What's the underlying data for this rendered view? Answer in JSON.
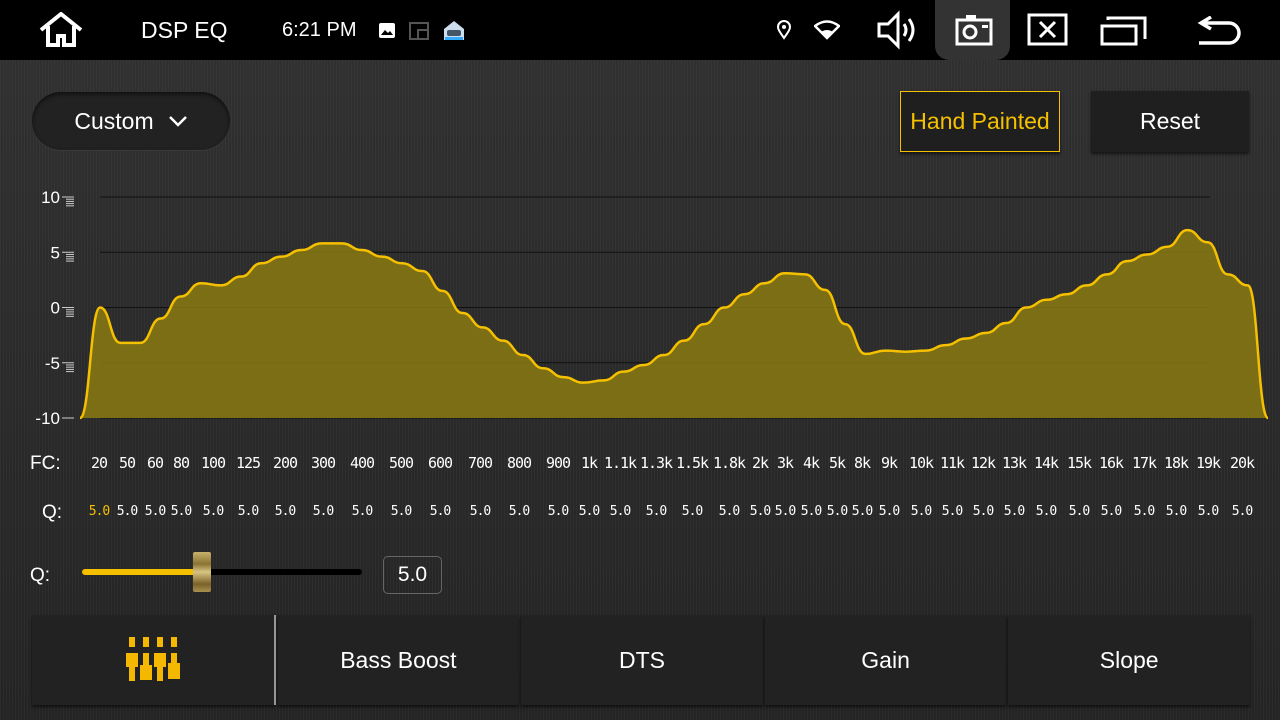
{
  "status_bar": {
    "app_title": "DSP EQ",
    "time": "6:21 PM",
    "icons": [
      "home-icon",
      "image-icon",
      "pip-icon",
      "car-icon",
      "location-icon",
      "wifi-icon",
      "volume-icon",
      "camera-icon",
      "close-window-icon",
      "recent-apps-icon",
      "back-icon"
    ]
  },
  "toolbar": {
    "preset": "Custom",
    "hand_painted": "Hand Painted",
    "reset": "Reset",
    "accent": "#f5c000"
  },
  "chart_data": {
    "type": "area",
    "ylim": [
      -10,
      10
    ],
    "yticks": [
      "10",
      "5",
      "0",
      "-5",
      "-10"
    ],
    "grid": true,
    "fill_color": "#8a7a10",
    "line_color": "#f5c000",
    "curve_gain_db": [
      -10,
      0,
      -3.2,
      -3.2,
      -1,
      1,
      2.2,
      2,
      2.8,
      4,
      4.6,
      5.2,
      5.8,
      5.8,
      5.2,
      4.6,
      4,
      3.3,
      1.5,
      -0.5,
      -1.8,
      -3,
      -4.3,
      -5.5,
      -6.3,
      -6.8,
      -6.6,
      -5.8,
      -5.2,
      -4.3,
      -3,
      -1.5,
      0,
      1.2,
      2.2,
      3.1,
      3,
      1.6,
      -1.5,
      -4.2,
      -3.9,
      -4,
      -3.9,
      -3.4,
      -2.8,
      -2.3,
      -1.4,
      0,
      0.7,
      1.2,
      2,
      3,
      4.2,
      4.8,
      5.5,
      7,
      5.9,
      3,
      2,
      -10
    ]
  },
  "bands": {
    "fc_label": "FC:",
    "q_label": "Q:",
    "fc": [
      "20",
      "50",
      "60",
      "80",
      "100",
      "125",
      "200",
      "300",
      "400",
      "500",
      "600",
      "700",
      "800",
      "900",
      "1k",
      "1.1k",
      "1.3k",
      "1.5k",
      "1.8k",
      "2k",
      "3k",
      "4k",
      "5k",
      "8k",
      "9k",
      "10k",
      "11k",
      "12k",
      "13k",
      "14k",
      "15k",
      "16k",
      "17k",
      "18k",
      "19k",
      "20k"
    ],
    "q": [
      "5.0",
      "5.0",
      "5.0",
      "5.0",
      "5.0",
      "5.0",
      "5.0",
      "5.0",
      "5.0",
      "5.0",
      "5.0",
      "5.0",
      "5.0",
      "5.0",
      "5.0",
      "5.0",
      "5.0",
      "5.0",
      "5.0",
      "5.0",
      "5.0",
      "5.0",
      "5.0",
      "5.0",
      "5.0",
      "5.0",
      "5.0",
      "5.0",
      "5.0",
      "5.0",
      "5.0",
      "5.0",
      "5.0",
      "5.0",
      "5.0",
      "5.0"
    ],
    "selected_index": 0
  },
  "q_slider": {
    "label": "Q:",
    "value": "5.0",
    "fill_fraction": 0.43
  },
  "bottom_tabs": [
    {
      "icon": "equalizer-icon"
    },
    {
      "label": "Bass Boost"
    },
    {
      "label": "DTS"
    },
    {
      "label": "Gain"
    },
    {
      "label": "Slope"
    }
  ]
}
